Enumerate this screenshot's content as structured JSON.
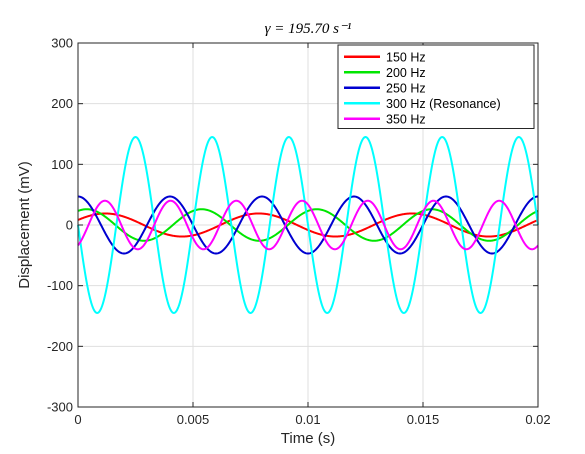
{
  "chart_data": {
    "type": "line",
    "title": "γ = 195.70 s⁻¹",
    "xlabel": "Time (s)",
    "ylabel": "Displacement (mV)",
    "xlim": [
      0,
      0.02
    ],
    "ylim": [
      -300,
      300
    ],
    "xticks": [
      0,
      0.005,
      0.01,
      0.015,
      0.02
    ],
    "xtick_labels": [
      "0",
      "0.005",
      "0.01",
      "0.015",
      "0.02"
    ],
    "yticks": [
      -300,
      -200,
      -100,
      0,
      100,
      200,
      300
    ],
    "ytick_labels": [
      "-300",
      "-200",
      "-100",
      "0",
      "100",
      "200",
      "300"
    ],
    "grid": true,
    "legend_position": "top-right",
    "series": [
      {
        "name": "150 Hz",
        "color": "#ff0000",
        "frequency_hz": 150,
        "amplitude_mv": 19,
        "phase_rad": 0.45
      },
      {
        "name": "200 Hz",
        "color": "#00e600",
        "frequency_hz": 200,
        "amplitude_mv": 26,
        "phase_rad": 1.1
      },
      {
        "name": "250 Hz",
        "color": "#0000d0",
        "frequency_hz": 250,
        "amplitude_mv": 47,
        "phase_rad": 1.57
      },
      {
        "name": "300 Hz (Resonance)",
        "color": "#00ffff",
        "frequency_hz": 300,
        "amplitude_mv": 145,
        "phase_rad": 3.14
      },
      {
        "name": "350 Hz",
        "color": "#ff00ff",
        "frequency_hz": 350,
        "amplitude_mv": 40,
        "phase_rad": -1.0
      }
    ]
  }
}
